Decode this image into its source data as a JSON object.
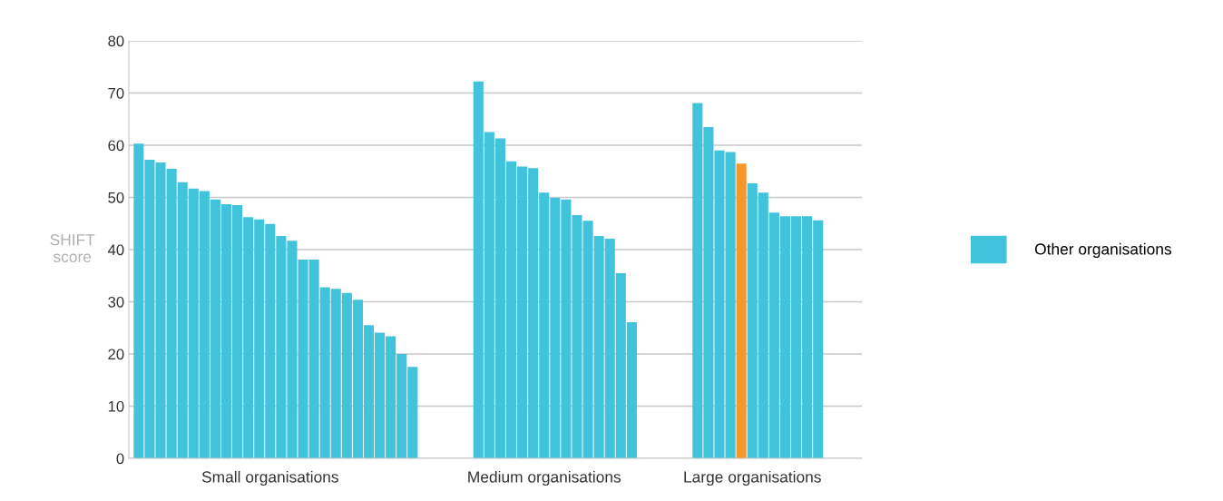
{
  "chart_data": {
    "type": "bar",
    "ylabel": "SHIFT\nscore",
    "categories": [
      null,
      null,
      null,
      null,
      null,
      null,
      null,
      null,
      null,
      null,
      null,
      null,
      "Small organisations",
      null,
      null,
      null,
      null,
      null,
      null,
      null,
      null,
      null,
      null,
      null,
      null,
      null,
      null,
      null,
      null,
      null,
      null,
      null,
      null,
      null,
      null,
      null,
      null,
      "Medium organisations",
      null,
      null,
      null,
      null,
      null,
      null,
      null,
      null,
      null,
      null,
      null,
      null,
      null,
      null,
      null,
      null,
      null,
      null,
      "Large organisations",
      null,
      null,
      null,
      null,
      null,
      null
    ],
    "series": [
      {
        "name": null,
        "color": "#f7962a",
        "values": [
          null,
          null,
          null,
          null,
          null,
          null,
          null,
          null,
          null,
          null,
          null,
          null,
          null,
          null,
          null,
          null,
          null,
          null,
          null,
          null,
          null,
          null,
          null,
          null,
          null,
          null,
          null,
          null,
          null,
          null,
          null,
          null,
          null,
          null,
          null,
          null,
          null,
          null,
          null,
          null,
          null,
          null,
          null,
          null,
          null,
          null,
          null,
          null,
          null,
          null,
          null,
          null,
          null,
          null,
          null,
          56.5,
          null,
          null,
          null,
          null,
          null,
          null,
          null
        ]
      },
      {
        "name": "Other organisations",
        "color": "#42c3dc",
        "values": [
          60.3,
          57.2,
          56.7,
          55.5,
          52.9,
          51.7,
          51.2,
          49.6,
          48.7,
          48.5,
          46.2,
          45.8,
          44.9,
          42.6,
          41.7,
          38.1,
          38.1,
          32.8,
          32.5,
          31.7,
          30.4,
          25.5,
          24.1,
          23.4,
          20,
          17.5,
          null,
          null,
          null,
          null,
          null,
          72.2,
          62.5,
          61.3,
          56.9,
          55.9,
          55.6,
          50.9,
          49.9,
          49.6,
          46.6,
          45.5,
          42.6,
          42.1,
          35.5,
          26.1,
          null,
          null,
          null,
          null,
          null,
          68.1,
          63.5,
          59.0,
          58.7,
          null,
          52.7,
          50.9,
          47.1,
          46.4,
          46.4,
          46.4,
          45.6
        ]
      }
    ],
    "ylim": [
      0,
      80
    ],
    "yticks": [
      0,
      10,
      20,
      30,
      40,
      50,
      60,
      70,
      80
    ],
    "grid": "y",
    "legend": "right"
  }
}
